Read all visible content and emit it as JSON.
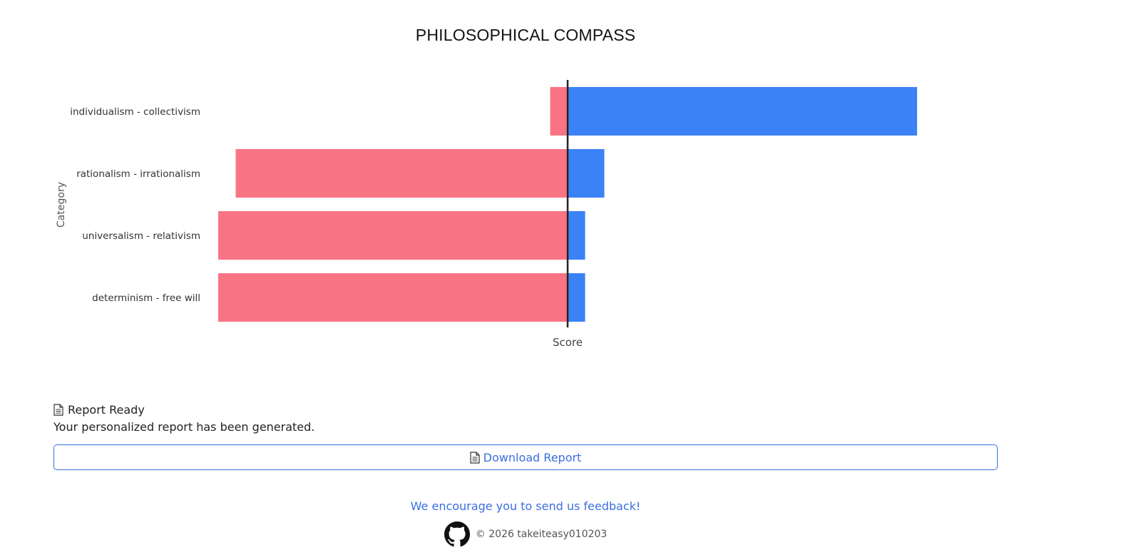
{
  "chart_data": {
    "type": "bar",
    "orientation": "horizontal",
    "title": "PHILOSOPHICAL COMPASS",
    "xlabel": "Score",
    "ylabel": "Category",
    "xlim": [
      -100,
      100
    ],
    "grid": false,
    "categories": [
      "individualism - collectivism",
      "rationalism - irrationalism",
      "universalism - relativism",
      "determinism - free will"
    ],
    "series": [
      {
        "color": "#f87485",
        "values": [
          -5,
          -95,
          -100,
          -100
        ]
      },
      {
        "color": "#3b82f6",
        "values": [
          100,
          10.5,
          5,
          5
        ]
      }
    ]
  },
  "report": {
    "icon": "document-icon",
    "title": "Report Ready",
    "description": "Your personalized report has been generated.",
    "download_label": "Download Report"
  },
  "footer": {
    "feedback_link": "We encourage you to send us feedback!",
    "github_icon": "github-icon",
    "copyright": "© 2026 takeiteasy010203"
  },
  "colors": {
    "accent": "#3b6fe0",
    "negative": "#f87485",
    "positive": "#3b82f6"
  }
}
